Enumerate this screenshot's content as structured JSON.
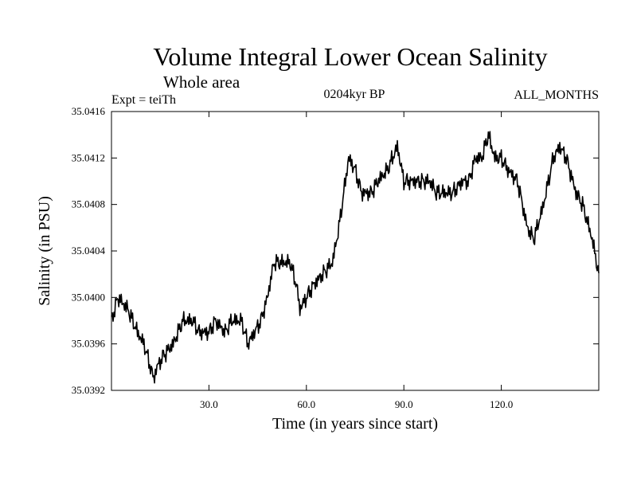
{
  "chart_data": {
    "type": "line",
    "title": "Volume Integral Lower Ocean Salinity",
    "subtitle": "Whole area",
    "experiment": "Expt = teiTh",
    "period": "0204kyr BP",
    "months": "ALL_MONTHS",
    "xlabel": "Time (in years since start)",
    "ylabel": "Salinity (in PSU)",
    "xlim": [
      0,
      150
    ],
    "ylim": [
      35.0392,
      35.0416
    ],
    "xticks": [
      {
        "value": 30,
        "label": "30.0"
      },
      {
        "value": 60,
        "label": "60.0"
      },
      {
        "value": 90,
        "label": "90.0"
      },
      {
        "value": 120,
        "label": "120.0"
      }
    ],
    "yticks": [
      {
        "value": 35.0392,
        "label": "35.0392"
      },
      {
        "value": 35.0396,
        "label": "35.0396"
      },
      {
        "value": 35.04,
        "label": "35.0400"
      },
      {
        "value": 35.0404,
        "label": "35.0404"
      },
      {
        "value": 35.0408,
        "label": "35.0408"
      },
      {
        "value": 35.0412,
        "label": "35.0412"
      },
      {
        "value": 35.0416,
        "label": "35.0416"
      }
    ],
    "grid": false,
    "series": [
      {
        "name": "salinity",
        "x": [
          0,
          2,
          5,
          8,
          10,
          12,
          13,
          14,
          16,
          19,
          22,
          25,
          27,
          30,
          32,
          35,
          37,
          40,
          42,
          44,
          46,
          48,
          50,
          52,
          55,
          57,
          58,
          60,
          62,
          65,
          68,
          70,
          72,
          73,
          75,
          77,
          80,
          82,
          85,
          88,
          90,
          92,
          95,
          98,
          100,
          103,
          105,
          108,
          110,
          112,
          114,
          116,
          118,
          120,
          122,
          125,
          128,
          130,
          133,
          136,
          138,
          140,
          143,
          145,
          148,
          150
        ],
        "y": [
          35.0398,
          35.04,
          35.0399,
          35.0397,
          35.0396,
          35.0394,
          35.0393,
          35.0394,
          35.0395,
          35.0396,
          35.0398,
          35.0398,
          35.0397,
          35.0397,
          35.0398,
          35.0397,
          35.0398,
          35.0398,
          35.0396,
          35.0397,
          35.0398,
          35.04,
          35.0403,
          35.0403,
          35.0403,
          35.0401,
          35.0399,
          35.04,
          35.0401,
          35.0402,
          35.0403,
          35.0406,
          35.041,
          35.0412,
          35.0411,
          35.0409,
          35.0409,
          35.041,
          35.0411,
          35.0413,
          35.041,
          35.041,
          35.041,
          35.041,
          35.0409,
          35.0409,
          35.0409,
          35.041,
          35.041,
          35.0412,
          35.0412,
          35.0414,
          35.0412,
          35.0412,
          35.0411,
          35.041,
          35.0406,
          35.0405,
          35.0408,
          35.0412,
          35.0413,
          35.0412,
          35.0409,
          35.0408,
          35.0405,
          35.0402
        ]
      }
    ]
  }
}
